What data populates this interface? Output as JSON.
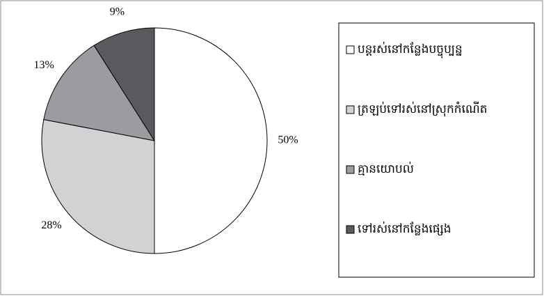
{
  "chart_data": {
    "type": "pie",
    "categories": [
      "បន្តរស់នៅកន្លែងបច្ចុប្បន្ន",
      "ត្រឡប់ទៅរស់នៅស្រុកកំណើត",
      "គ្មានយោបល់",
      "ទៅរស់នៅកន្លែងផ្សេង"
    ],
    "values": [
      50,
      28,
      13,
      9
    ],
    "value_labels": [
      "50%",
      "28%",
      "13%",
      "9%"
    ],
    "colors": [
      "#ffffff",
      "#d2d2d4",
      "#9c9ca0",
      "#5a5a5e"
    ],
    "legend": "right"
  }
}
